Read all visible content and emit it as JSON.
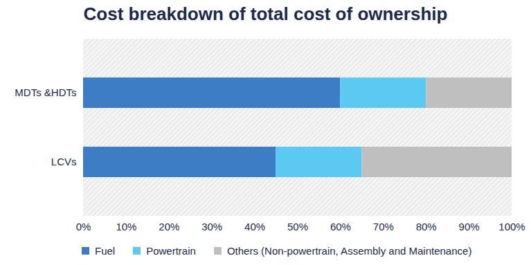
{
  "chart_data": {
    "type": "bar",
    "title": "Cost breakdown of total cost of ownership",
    "orientation": "horizontal",
    "stacked": true,
    "grid": false,
    "legend": "bottom",
    "categories": [
      "MDTs &HDTs",
      "LCVs"
    ],
    "series": [
      {
        "name": "Fuel",
        "color": "#3c7dc6",
        "values": [
          60,
          45
        ]
      },
      {
        "name": "Powertrain",
        "color": "#5bcaf2",
        "values": [
          20,
          20
        ]
      },
      {
        "name": "Others (Non-powertrain, Assembly and Maintenance)",
        "color": "#bfbfbf",
        "values": [
          20,
          35
        ]
      }
    ],
    "xlim": [
      0,
      100
    ],
    "xticks": [
      {
        "value": 0,
        "label": "0%"
      },
      {
        "value": 10,
        "label": "10%"
      },
      {
        "value": 20,
        "label": "20%"
      },
      {
        "value": 30,
        "label": "30%"
      },
      {
        "value": 40,
        "label": "40%"
      },
      {
        "value": 50,
        "label": "50%"
      },
      {
        "value": 60,
        "label": "60%"
      },
      {
        "value": 70,
        "label": "70%"
      },
      {
        "value": 80,
        "label": "80%"
      },
      {
        "value": 90,
        "label": "90%"
      },
      {
        "value": 100,
        "label": "100%"
      }
    ]
  }
}
